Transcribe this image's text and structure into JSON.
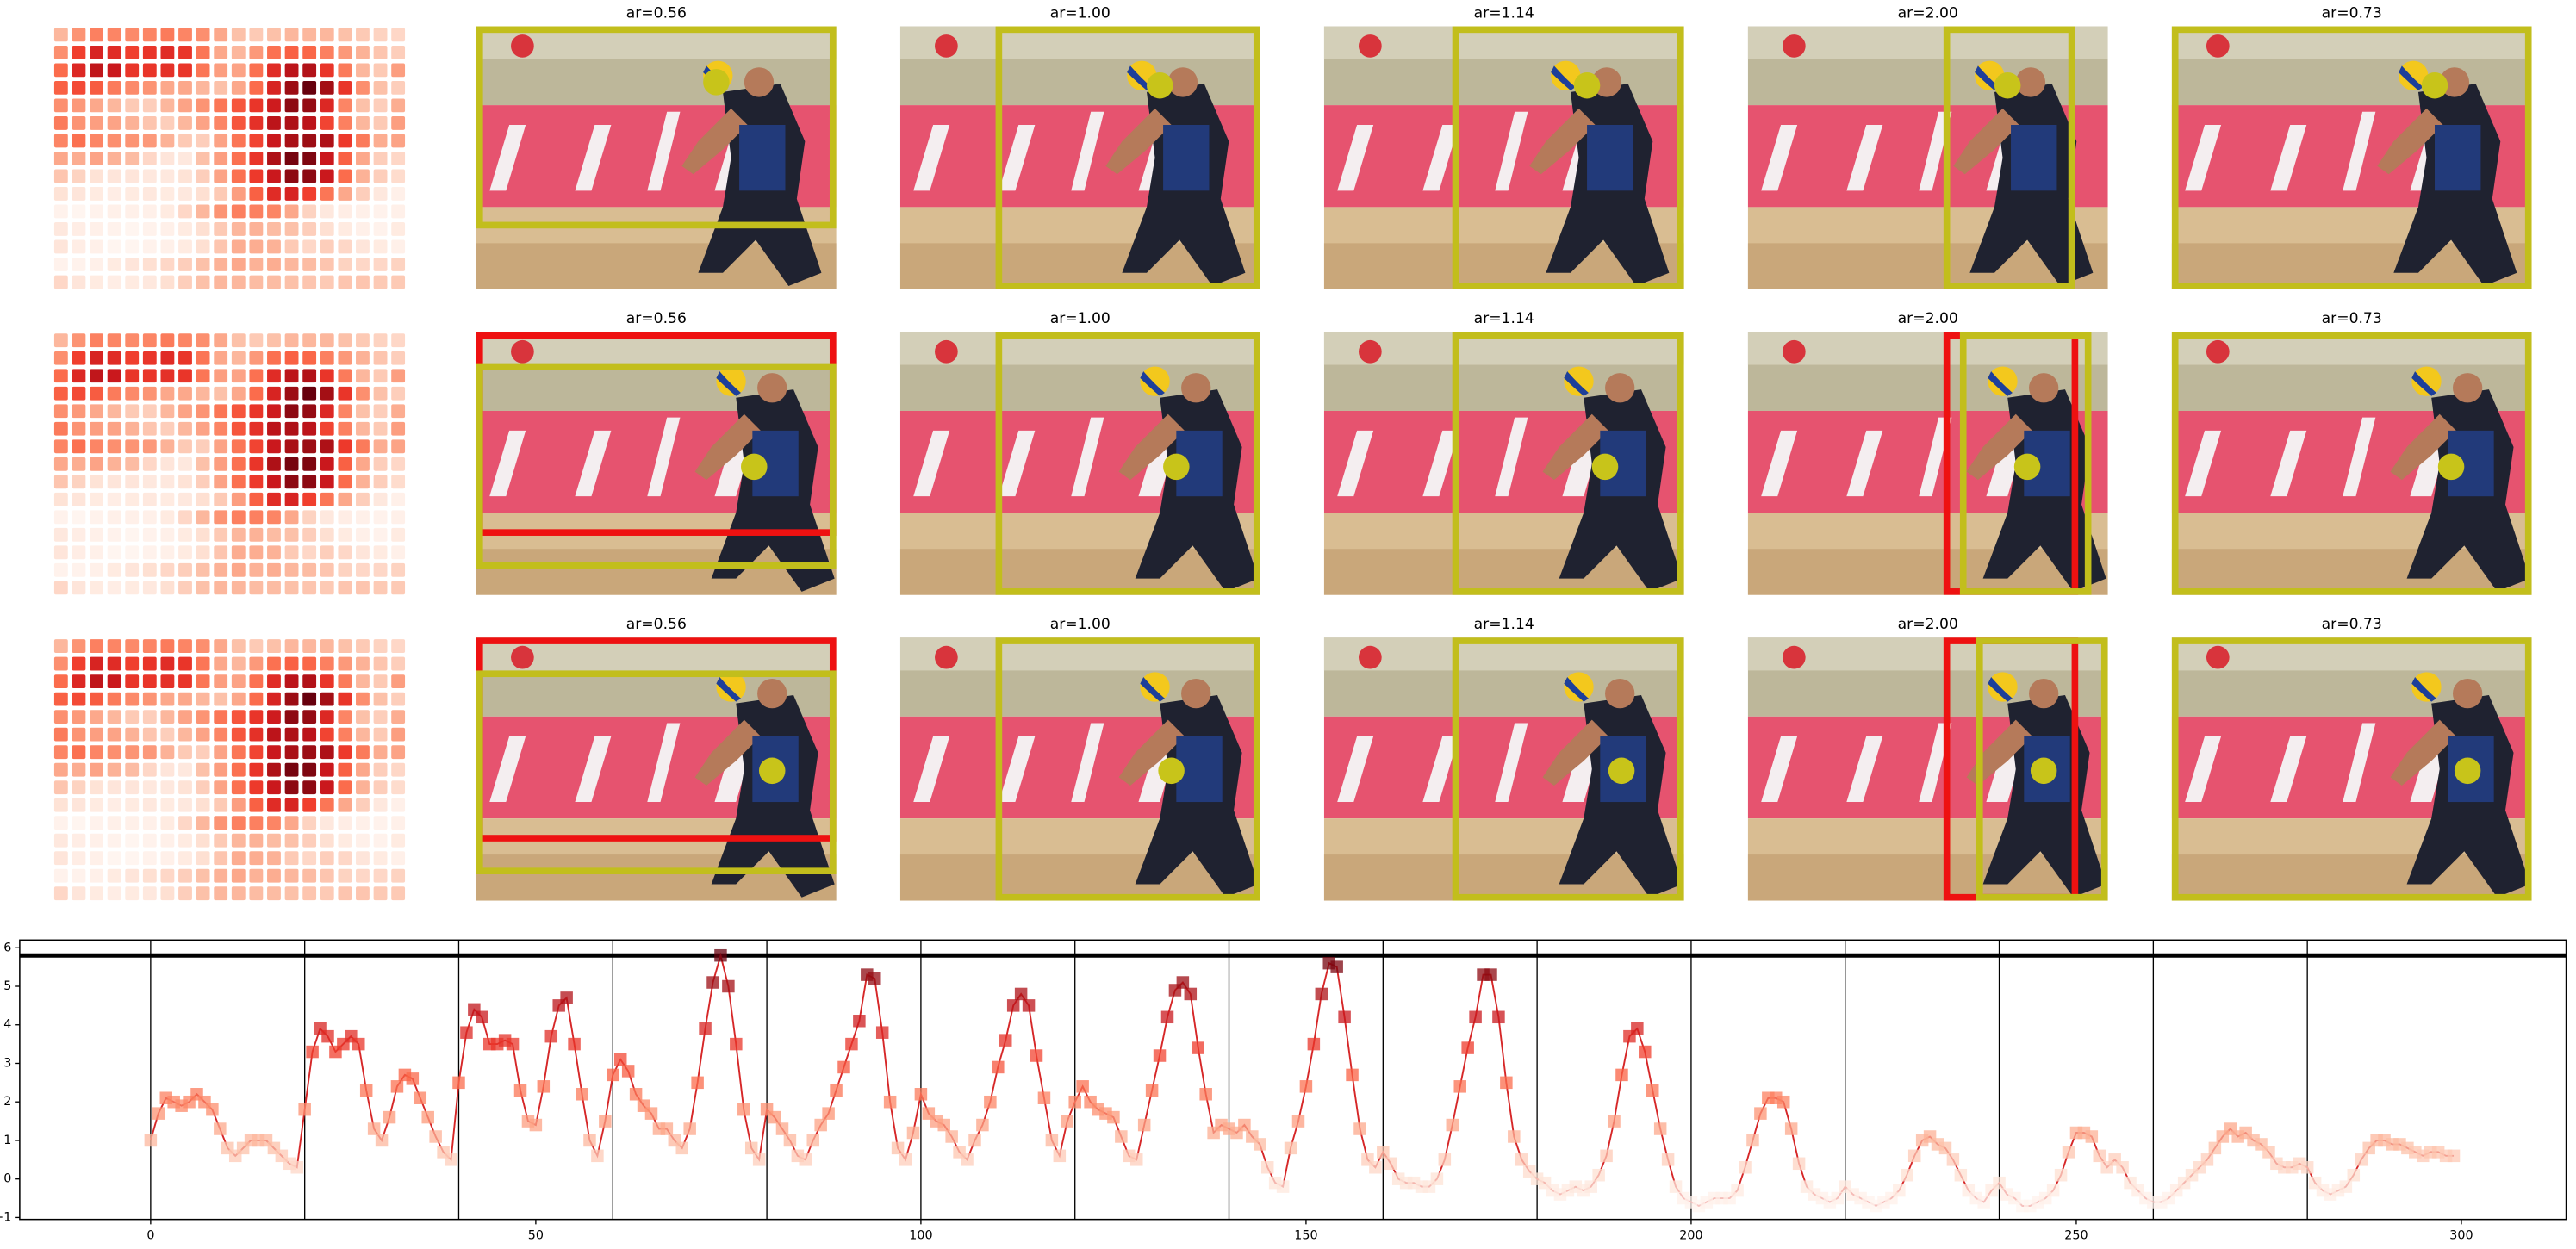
{
  "panels": [
    {
      "titles": [
        "ar=0.56",
        "ar=1.00",
        "ar=1.14",
        "ar=2.00",
        "ar=0.73"
      ]
    },
    {
      "titles": [
        "ar=0.56",
        "ar=1.00",
        "ar=1.14",
        "ar=2.00",
        "ar=0.73"
      ]
    },
    {
      "titles": [
        "ar=0.56",
        "ar=1.00",
        "ar=1.14",
        "ar=2.00",
        "ar=0.73"
      ]
    }
  ],
  "chart_data": {
    "type": "line",
    "colormap": "Reds",
    "x": [
      0,
      1,
      2,
      3,
      4,
      5,
      6,
      7,
      8,
      9,
      10,
      11,
      12,
      13,
      14,
      15,
      16,
      17,
      18,
      19,
      20,
      21,
      22,
      23,
      24,
      25,
      26,
      27,
      28,
      29,
      30,
      31,
      32,
      33,
      34,
      35,
      36,
      37,
      38,
      39,
      40,
      41,
      42,
      43,
      44,
      45,
      46,
      47,
      48,
      49,
      50,
      51,
      52,
      53,
      54,
      55,
      56,
      57,
      58,
      59,
      60,
      61,
      62,
      63,
      64,
      65,
      66,
      67,
      68,
      69,
      70,
      71,
      72,
      73,
      74,
      75,
      76,
      77,
      78,
      79,
      80,
      81,
      82,
      83,
      84,
      85,
      86,
      87,
      88,
      89,
      90,
      91,
      92,
      93,
      94,
      95,
      96,
      97,
      98,
      99,
      100,
      101,
      102,
      103,
      104,
      105,
      106,
      107,
      108,
      109,
      110,
      111,
      112,
      113,
      114,
      115,
      116,
      117,
      118,
      119,
      120,
      121,
      122,
      123,
      124,
      125,
      126,
      127,
      128,
      129,
      130,
      131,
      132,
      133,
      134,
      135,
      136,
      137,
      138,
      139,
      140,
      141,
      142,
      143,
      144,
      145,
      146,
      147,
      148,
      149,
      150,
      151,
      152,
      153,
      154,
      155,
      156,
      157,
      158,
      159,
      160,
      161,
      162,
      163,
      164,
      165,
      166,
      167,
      168,
      169,
      170,
      171,
      172,
      173,
      174,
      175,
      176,
      177,
      178,
      179,
      180,
      181,
      182,
      183,
      184,
      185,
      186,
      187,
      188,
      189,
      190,
      191,
      192,
      193,
      194,
      195,
      196,
      197,
      198,
      199,
      200,
      201,
      202,
      203,
      204,
      205,
      206,
      207,
      208,
      209,
      210,
      211,
      212,
      213,
      214,
      215,
      216,
      217,
      218,
      219,
      220,
      221,
      222,
      223,
      224,
      225,
      226,
      227,
      228,
      229,
      230,
      231,
      232,
      233,
      234,
      235,
      236,
      237,
      238,
      239,
      240,
      241,
      242,
      243,
      244,
      245,
      246,
      247,
      248,
      249,
      250,
      251,
      252,
      253,
      254,
      255,
      256,
      257,
      258,
      259,
      260,
      261,
      262,
      263,
      264,
      265,
      266,
      267,
      268,
      269,
      270,
      271,
      272,
      273,
      274,
      275,
      276,
      277,
      278,
      279,
      280,
      281,
      282,
      283,
      284,
      285,
      286,
      287,
      288,
      289,
      290,
      291,
      292,
      293,
      294,
      295,
      296,
      297,
      298,
      299
    ],
    "series": [
      {
        "color": "#d62728",
        "values": [
          1.0,
          1.7,
          2.1,
          2.0,
          1.9,
          2.0,
          2.2,
          2.0,
          1.8,
          1.3,
          0.8,
          0.6,
          0.8,
          1.0,
          1.0,
          1.0,
          0.8,
          0.6,
          0.4,
          0.3,
          1.8,
          3.3,
          3.9,
          3.7,
          3.3,
          3.5,
          3.7,
          3.5,
          2.3,
          1.3,
          1.0,
          1.6,
          2.4,
          2.7,
          2.6,
          2.1,
          1.6,
          1.1,
          0.7,
          0.5,
          2.5,
          3.8,
          4.4,
          4.2,
          3.5,
          3.5,
          3.6,
          3.5,
          2.3,
          1.5,
          1.4,
          2.4,
          3.7,
          4.5,
          4.7,
          3.5,
          2.2,
          1.0,
          0.6,
          1.5,
          2.7,
          3.1,
          2.8,
          2.2,
          1.9,
          1.7,
          1.3,
          1.3,
          1.0,
          0.8,
          1.3,
          2.5,
          3.9,
          5.1,
          5.8,
          5.0,
          3.5,
          1.8,
          0.8,
          0.5,
          1.8,
          1.6,
          1.3,
          1.0,
          0.6,
          0.5,
          1.0,
          1.4,
          1.7,
          2.3,
          2.9,
          3.5,
          4.1,
          5.3,
          5.2,
          3.8,
          2.0,
          0.8,
          0.5,
          1.2,
          2.2,
          1.7,
          1.5,
          1.4,
          1.1,
          0.7,
          0.5,
          1.0,
          1.4,
          2.0,
          2.9,
          3.6,
          4.5,
          4.8,
          4.5,
          3.2,
          2.1,
          1.0,
          0.6,
          1.5,
          2.0,
          2.4,
          2.0,
          1.8,
          1.7,
          1.6,
          1.1,
          0.6,
          0.5,
          1.4,
          2.3,
          3.2,
          4.2,
          4.9,
          5.1,
          4.8,
          3.4,
          2.2,
          1.2,
          1.4,
          1.3,
          1.2,
          1.4,
          1.1,
          0.9,
          0.3,
          -0.1,
          -0.2,
          0.8,
          1.5,
          2.4,
          3.5,
          4.8,
          5.6,
          5.5,
          4.2,
          2.7,
          1.3,
          0.5,
          0.3,
          0.7,
          0.4,
          0.0,
          -0.1,
          -0.1,
          -0.2,
          -0.2,
          0.0,
          0.5,
          1.4,
          2.4,
          3.4,
          4.2,
          5.3,
          5.3,
          4.2,
          2.5,
          1.1,
          0.5,
          0.2,
          0.0,
          -0.1,
          -0.3,
          -0.4,
          -0.3,
          -0.2,
          -0.3,
          -0.2,
          0.1,
          0.6,
          1.5,
          2.7,
          3.7,
          3.9,
          3.3,
          2.3,
          1.3,
          0.5,
          -0.2,
          -0.5,
          -0.6,
          -0.7,
          -0.6,
          -0.5,
          -0.5,
          -0.5,
          -0.3,
          0.3,
          1.0,
          1.7,
          2.1,
          2.1,
          2.0,
          1.3,
          0.4,
          -0.2,
          -0.4,
          -0.5,
          -0.6,
          -0.5,
          -0.2,
          -0.4,
          -0.5,
          -0.6,
          -0.7,
          -0.6,
          -0.5,
          -0.3,
          0.1,
          0.6,
          1.0,
          1.1,
          0.9,
          0.8,
          0.5,
          0.1,
          -0.3,
          -0.5,
          -0.6,
          -0.3,
          -0.1,
          -0.4,
          -0.5,
          -0.7,
          -0.7,
          -0.6,
          -0.5,
          -0.3,
          0.1,
          0.7,
          1.2,
          1.2,
          1.1,
          0.6,
          0.3,
          0.5,
          0.3,
          -0.1,
          -0.3,
          -0.5,
          -0.6,
          -0.6,
          -0.5,
          -0.3,
          -0.1,
          0.1,
          0.3,
          0.5,
          0.8,
          1.1,
          1.3,
          1.1,
          1.2,
          1.0,
          0.9,
          0.7,
          0.4,
          0.3,
          0.3,
          0.4,
          0.3,
          -0.1,
          -0.3,
          -0.4,
          -0.3,
          -0.2,
          0.1,
          0.5,
          0.8,
          1.0,
          1.0,
          0.9,
          0.9,
          0.8,
          0.7,
          0.6,
          0.7,
          0.7,
          0.6,
          0.6
        ]
      }
    ],
    "hline": 5.8,
    "vlines": [
      0,
      20,
      40,
      60,
      80,
      100,
      120,
      140,
      160,
      180,
      200,
      220,
      240,
      260,
      280
    ],
    "xlim": [
      -17,
      313.6
    ],
    "ylim": [
      -1.05,
      6.2
    ],
    "xticks": [
      0,
      50,
      100,
      150,
      200,
      250,
      300
    ],
    "yticks": [
      {
        "value": -1,
        "label": "−1"
      },
      0,
      1,
      2,
      3,
      4,
      5,
      6
    ]
  }
}
